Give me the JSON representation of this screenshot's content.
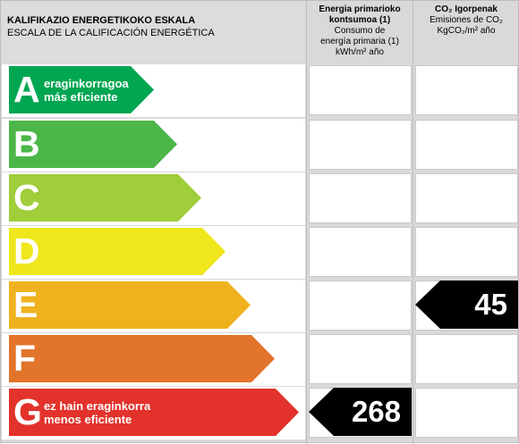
{
  "header": {
    "title_eu": "KALIFIKAZIO ENERGETIKOKO ESKALA",
    "title_es": "ESCALA DE LA CALIFICACIÓN ENERGÉTICA",
    "energy_col": {
      "line1": "Energia primarioko",
      "line2": "kontsumoa (1)",
      "line3": "Consumo de",
      "line4": "energía primaria (1)",
      "line5": "kWh/m² año"
    },
    "co2_col": {
      "line1": "CO₂ Igorpenak",
      "line2": "Emisiones de CO₂",
      "line3": "KgCO₂/m² año"
    }
  },
  "ratings": [
    {
      "letter": "A",
      "color": "#00a651",
      "label1": "eraginkorragoa",
      "label2": "más eficiente"
    },
    {
      "letter": "B",
      "color": "#4cb748",
      "label1": "",
      "label2": ""
    },
    {
      "letter": "C",
      "color": "#a0cd3a",
      "label1": "",
      "label2": ""
    },
    {
      "letter": "D",
      "color": "#f0e61c",
      "label1": "",
      "label2": ""
    },
    {
      "letter": "E",
      "color": "#efb21e",
      "label1": "",
      "label2": ""
    },
    {
      "letter": "F",
      "color": "#e2742b",
      "label1": "",
      "label2": ""
    },
    {
      "letter": "G",
      "color": "#e2322b",
      "label1": "ez hain eraginkorra",
      "label2": "menos eficiente"
    }
  ],
  "results": {
    "energy": {
      "value": "268",
      "rating": "G"
    },
    "co2": {
      "value": "45",
      "rating": "E"
    }
  }
}
